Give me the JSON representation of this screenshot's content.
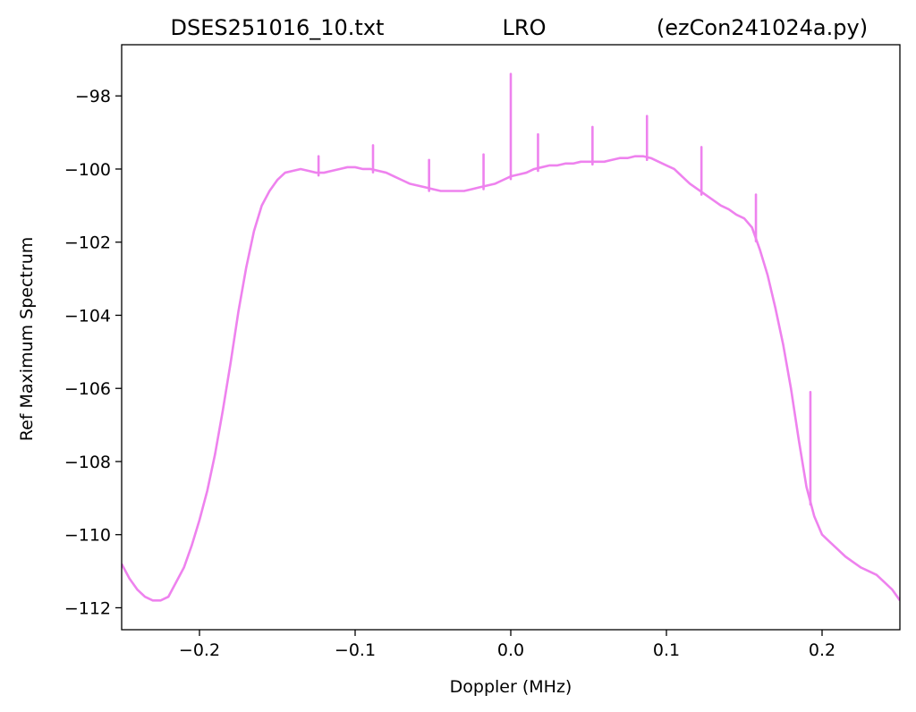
{
  "chart_data": {
    "type": "line",
    "title_parts": [
      "DSES251016_10.txt",
      "LRO",
      "(ezCon241024a.py)"
    ],
    "xlabel": "Doppler (MHz)",
    "ylabel": "Ref Maximum Spectrum",
    "xlim": [
      -0.25,
      0.25
    ],
    "ylim": [
      -112.6,
      -96.6
    ],
    "xticks": [
      -0.2,
      -0.1,
      0.0,
      0.1,
      0.2
    ],
    "xtick_labels": [
      "−0.2",
      "−0.1",
      "0.0",
      "0.1",
      "0.2"
    ],
    "yticks": [
      -112,
      -110,
      -108,
      -106,
      -104,
      -102,
      -100,
      -98
    ],
    "ytick_labels": [
      "−112",
      "−110",
      "−108",
      "−106",
      "−104",
      "−102",
      "−100",
      "−98"
    ],
    "grid": false,
    "series": [
      {
        "color": "#ee82ee",
        "x": [
          -0.25,
          -0.245,
          -0.24,
          -0.235,
          -0.23,
          -0.225,
          -0.22,
          -0.215,
          -0.21,
          -0.205,
          -0.2,
          -0.195,
          -0.19,
          -0.185,
          -0.18,
          -0.175,
          -0.17,
          -0.165,
          -0.16,
          -0.155,
          -0.15,
          -0.145,
          -0.14,
          -0.135,
          -0.13,
          -0.125,
          -0.12,
          -0.115,
          -0.11,
          -0.105,
          -0.1,
          -0.095,
          -0.09,
          -0.085,
          -0.08,
          -0.075,
          -0.07,
          -0.065,
          -0.06,
          -0.055,
          -0.05,
          -0.045,
          -0.04,
          -0.035,
          -0.03,
          -0.025,
          -0.02,
          -0.015,
          -0.01,
          -0.005,
          0.0,
          0.005,
          0.01,
          0.015,
          0.02,
          0.025,
          0.03,
          0.035,
          0.04,
          0.045,
          0.05,
          0.055,
          0.06,
          0.065,
          0.07,
          0.075,
          0.08,
          0.085,
          0.09,
          0.095,
          0.1,
          0.105,
          0.11,
          0.115,
          0.12,
          0.125,
          0.13,
          0.135,
          0.14,
          0.145,
          0.15,
          0.155,
          0.16,
          0.165,
          0.17,
          0.175,
          0.18,
          0.185,
          0.19,
          0.195,
          0.2,
          0.205,
          0.21,
          0.215,
          0.22,
          0.225,
          0.23,
          0.235,
          0.24,
          0.245,
          0.25
        ],
        "y": [
          -110.8,
          -111.2,
          -111.5,
          -111.7,
          -111.8,
          -111.8,
          -111.7,
          -111.3,
          -110.9,
          -110.3,
          -109.6,
          -108.8,
          -107.8,
          -106.6,
          -105.3,
          -103.9,
          -102.7,
          -101.7,
          -101.0,
          -100.6,
          -100.3,
          -100.1,
          -100.05,
          -100.0,
          -100.05,
          -100.1,
          -100.1,
          -100.05,
          -100.0,
          -99.95,
          -99.95,
          -100.0,
          -100.0,
          -100.05,
          -100.1,
          -100.2,
          -100.3,
          -100.4,
          -100.45,
          -100.5,
          -100.55,
          -100.6,
          -100.6,
          -100.6,
          -100.6,
          -100.55,
          -100.5,
          -100.45,
          -100.4,
          -100.3,
          -100.2,
          -100.15,
          -100.1,
          -100.0,
          -99.95,
          -99.9,
          -99.9,
          -99.85,
          -99.85,
          -99.8,
          -99.8,
          -99.8,
          -99.8,
          -99.75,
          -99.7,
          -99.7,
          -99.65,
          -99.65,
          -99.7,
          -99.8,
          -99.9,
          -100.0,
          -100.2,
          -100.4,
          -100.55,
          -100.7,
          -100.85,
          -101.0,
          -101.1,
          -101.25,
          -101.35,
          -101.6,
          -102.2,
          -102.9,
          -103.8,
          -104.8,
          -106.0,
          -107.4,
          -108.7,
          -109.5,
          -110.0,
          -110.2,
          -110.4,
          -110.6,
          -110.75,
          -110.9,
          -111.0,
          -111.1,
          -111.3,
          -111.5,
          -111.8
        ]
      }
    ],
    "spikes": [
      {
        "x": -0.1235,
        "y": -99.65
      },
      {
        "x": -0.0885,
        "y": -99.35
      },
      {
        "x": -0.0525,
        "y": -99.75
      },
      {
        "x": -0.0175,
        "y": -99.6
      },
      {
        "x": 0.0,
        "y": -97.4
      },
      {
        "x": 0.0175,
        "y": -99.05
      },
      {
        "x": 0.0525,
        "y": -98.85
      },
      {
        "x": 0.0875,
        "y": -98.55
      },
      {
        "x": 0.1225,
        "y": -99.4
      },
      {
        "x": 0.1575,
        "y": -100.7
      },
      {
        "x": 0.1925,
        "y": -106.1
      }
    ]
  }
}
